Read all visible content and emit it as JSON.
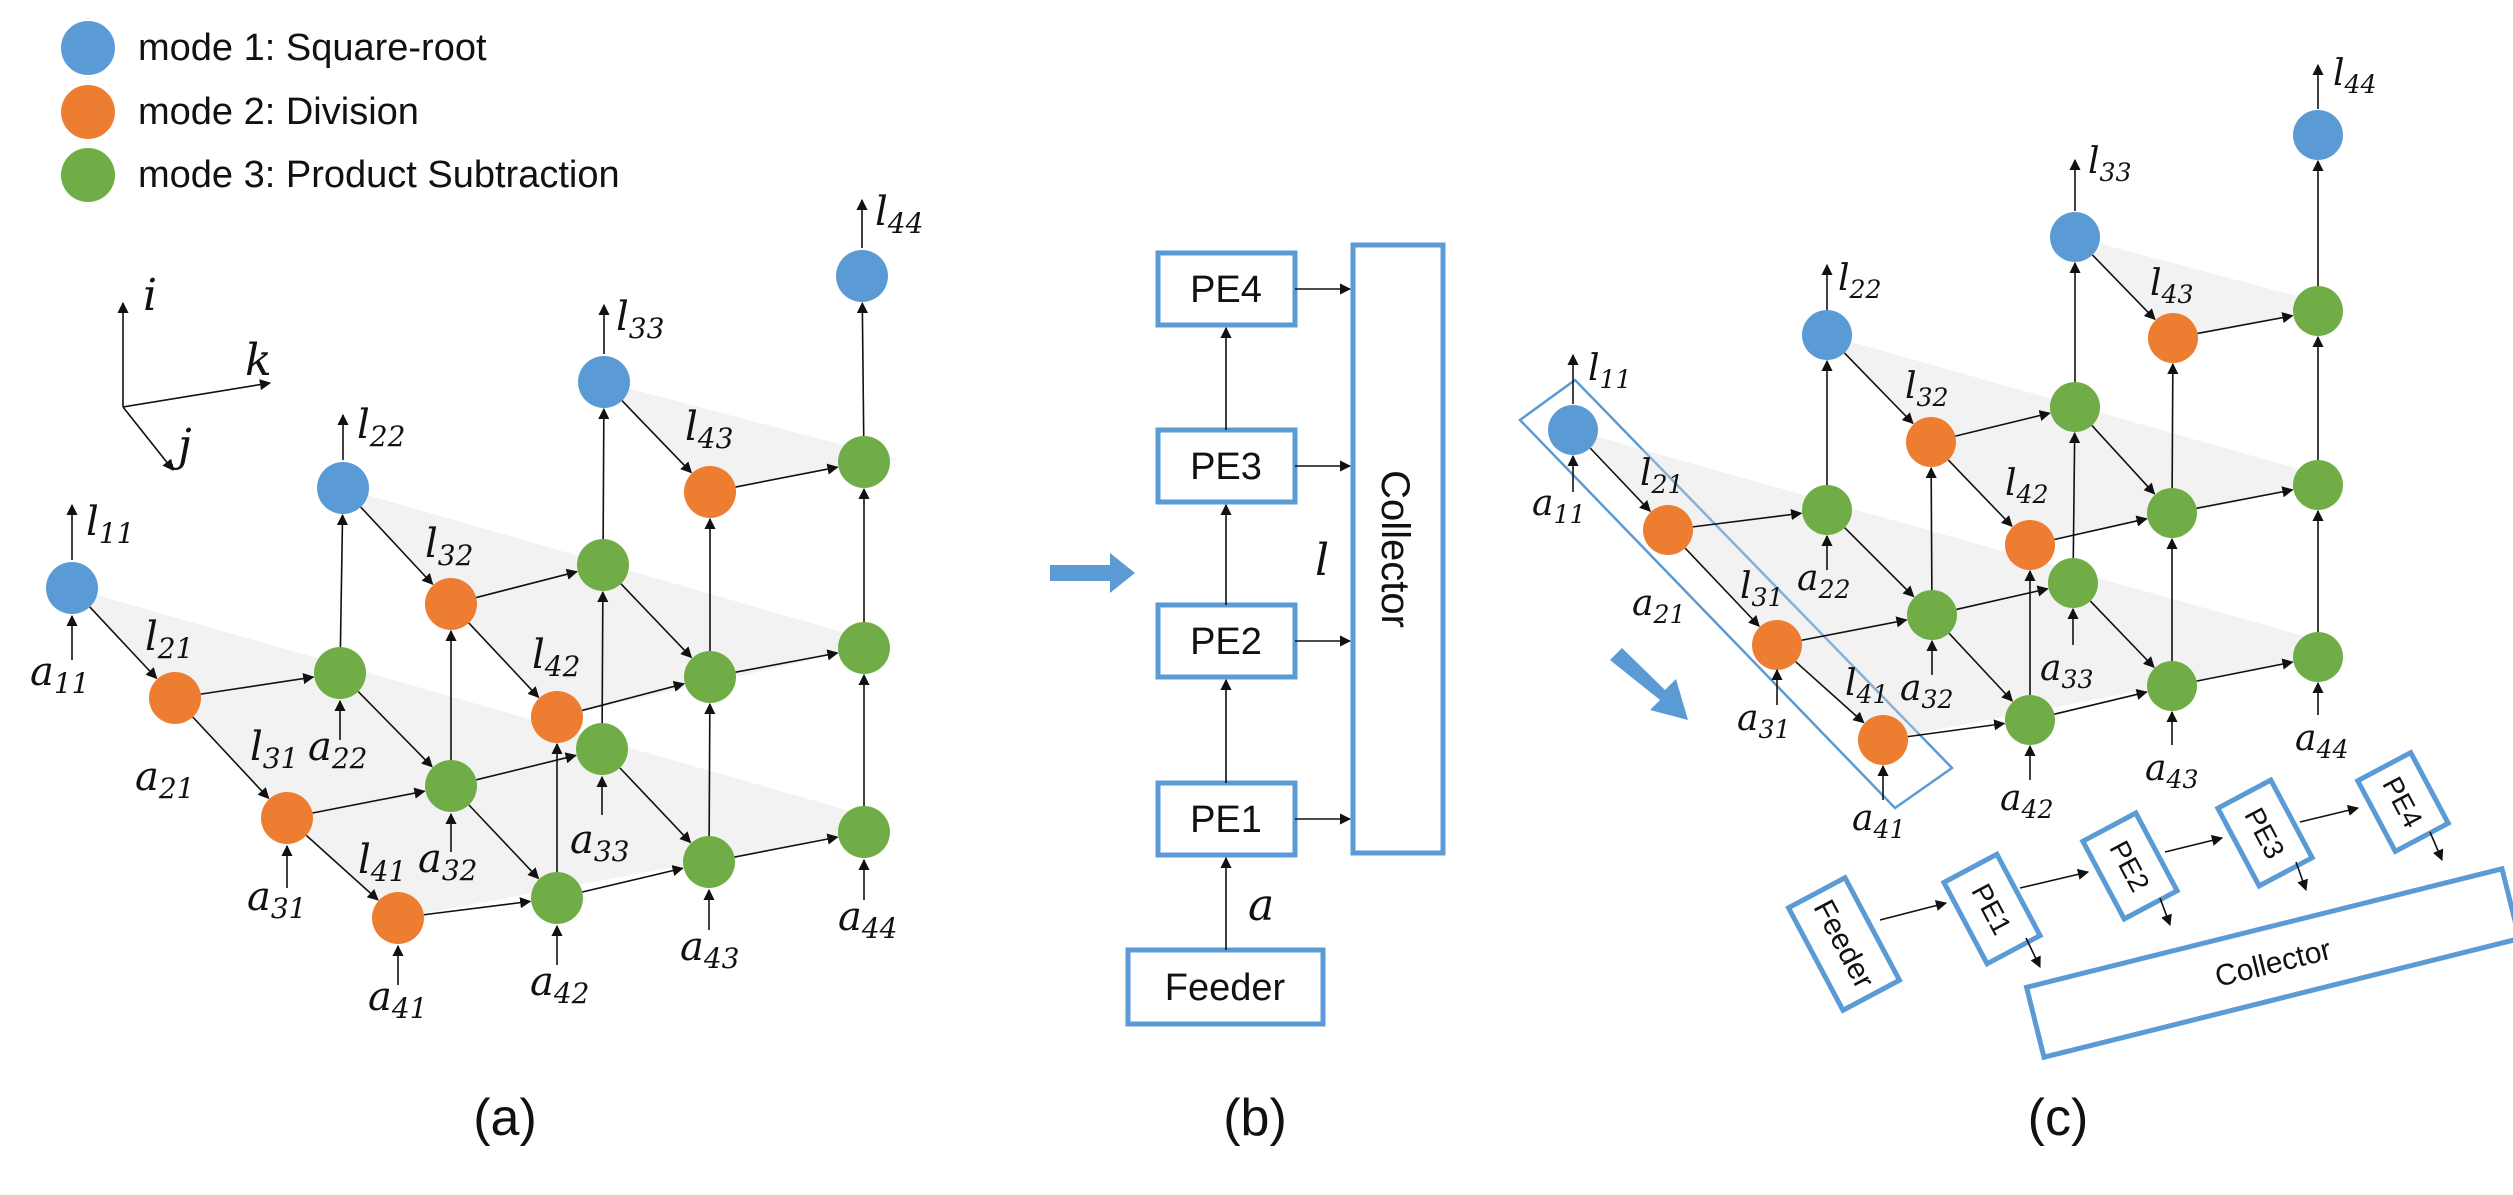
{
  "legend": [
    {
      "text": "mode 1: Square-root",
      "color": "#5b9bd5",
      "mode": "square-root"
    },
    {
      "text": "mode 2: Division",
      "color": "#ed7d31",
      "mode": "division"
    },
    {
      "text": "mode 3: Product Subtraction",
      "color": "#70ad47",
      "mode": "product-subtraction"
    }
  ],
  "colors": {
    "mode1": "#5b9bd5",
    "mode2": "#ed7d31",
    "mode3": "#70ad47",
    "box": "#5b9bd5"
  },
  "axes_a": {
    "i": "i",
    "k": "k",
    "j": "j"
  },
  "panel_b": {
    "pe_labels": [
      "PE4",
      "PE3",
      "PE2",
      "PE1"
    ],
    "collector": "Collector",
    "feeder": "Feeder",
    "input_var": "a",
    "output_var": "l"
  },
  "panel_c": {
    "feeder": "Feeder",
    "collector": "Collector",
    "pe_labels": [
      "PE1",
      "PE2",
      "PE3",
      "PE4"
    ]
  },
  "node_labels": {
    "l11": {
      "base": "l",
      "sub": "11"
    },
    "l21": {
      "base": "l",
      "sub": "21"
    },
    "l31": {
      "base": "l",
      "sub": "31"
    },
    "l41": {
      "base": "l",
      "sub": "41"
    },
    "l22": {
      "base": "l",
      "sub": "22"
    },
    "l32": {
      "base": "l",
      "sub": "32"
    },
    "l42": {
      "base": "l",
      "sub": "42"
    },
    "l33": {
      "base": "l",
      "sub": "33"
    },
    "l43": {
      "base": "l",
      "sub": "43"
    },
    "l44": {
      "base": "l",
      "sub": "44"
    },
    "a11": {
      "base": "a",
      "sub": "11"
    },
    "a21": {
      "base": "a",
      "sub": "21"
    },
    "a31": {
      "base": "a",
      "sub": "31"
    },
    "a41": {
      "base": "a",
      "sub": "41"
    },
    "a22": {
      "base": "a",
      "sub": "22"
    },
    "a32": {
      "base": "a",
      "sub": "32"
    },
    "a42": {
      "base": "a",
      "sub": "42"
    },
    "a33": {
      "base": "a",
      "sub": "33"
    },
    "a43": {
      "base": "a",
      "sub": "43"
    },
    "a44": {
      "base": "a",
      "sub": "44"
    }
  },
  "captions": [
    "(a)",
    "(b)",
    "(c)"
  ]
}
